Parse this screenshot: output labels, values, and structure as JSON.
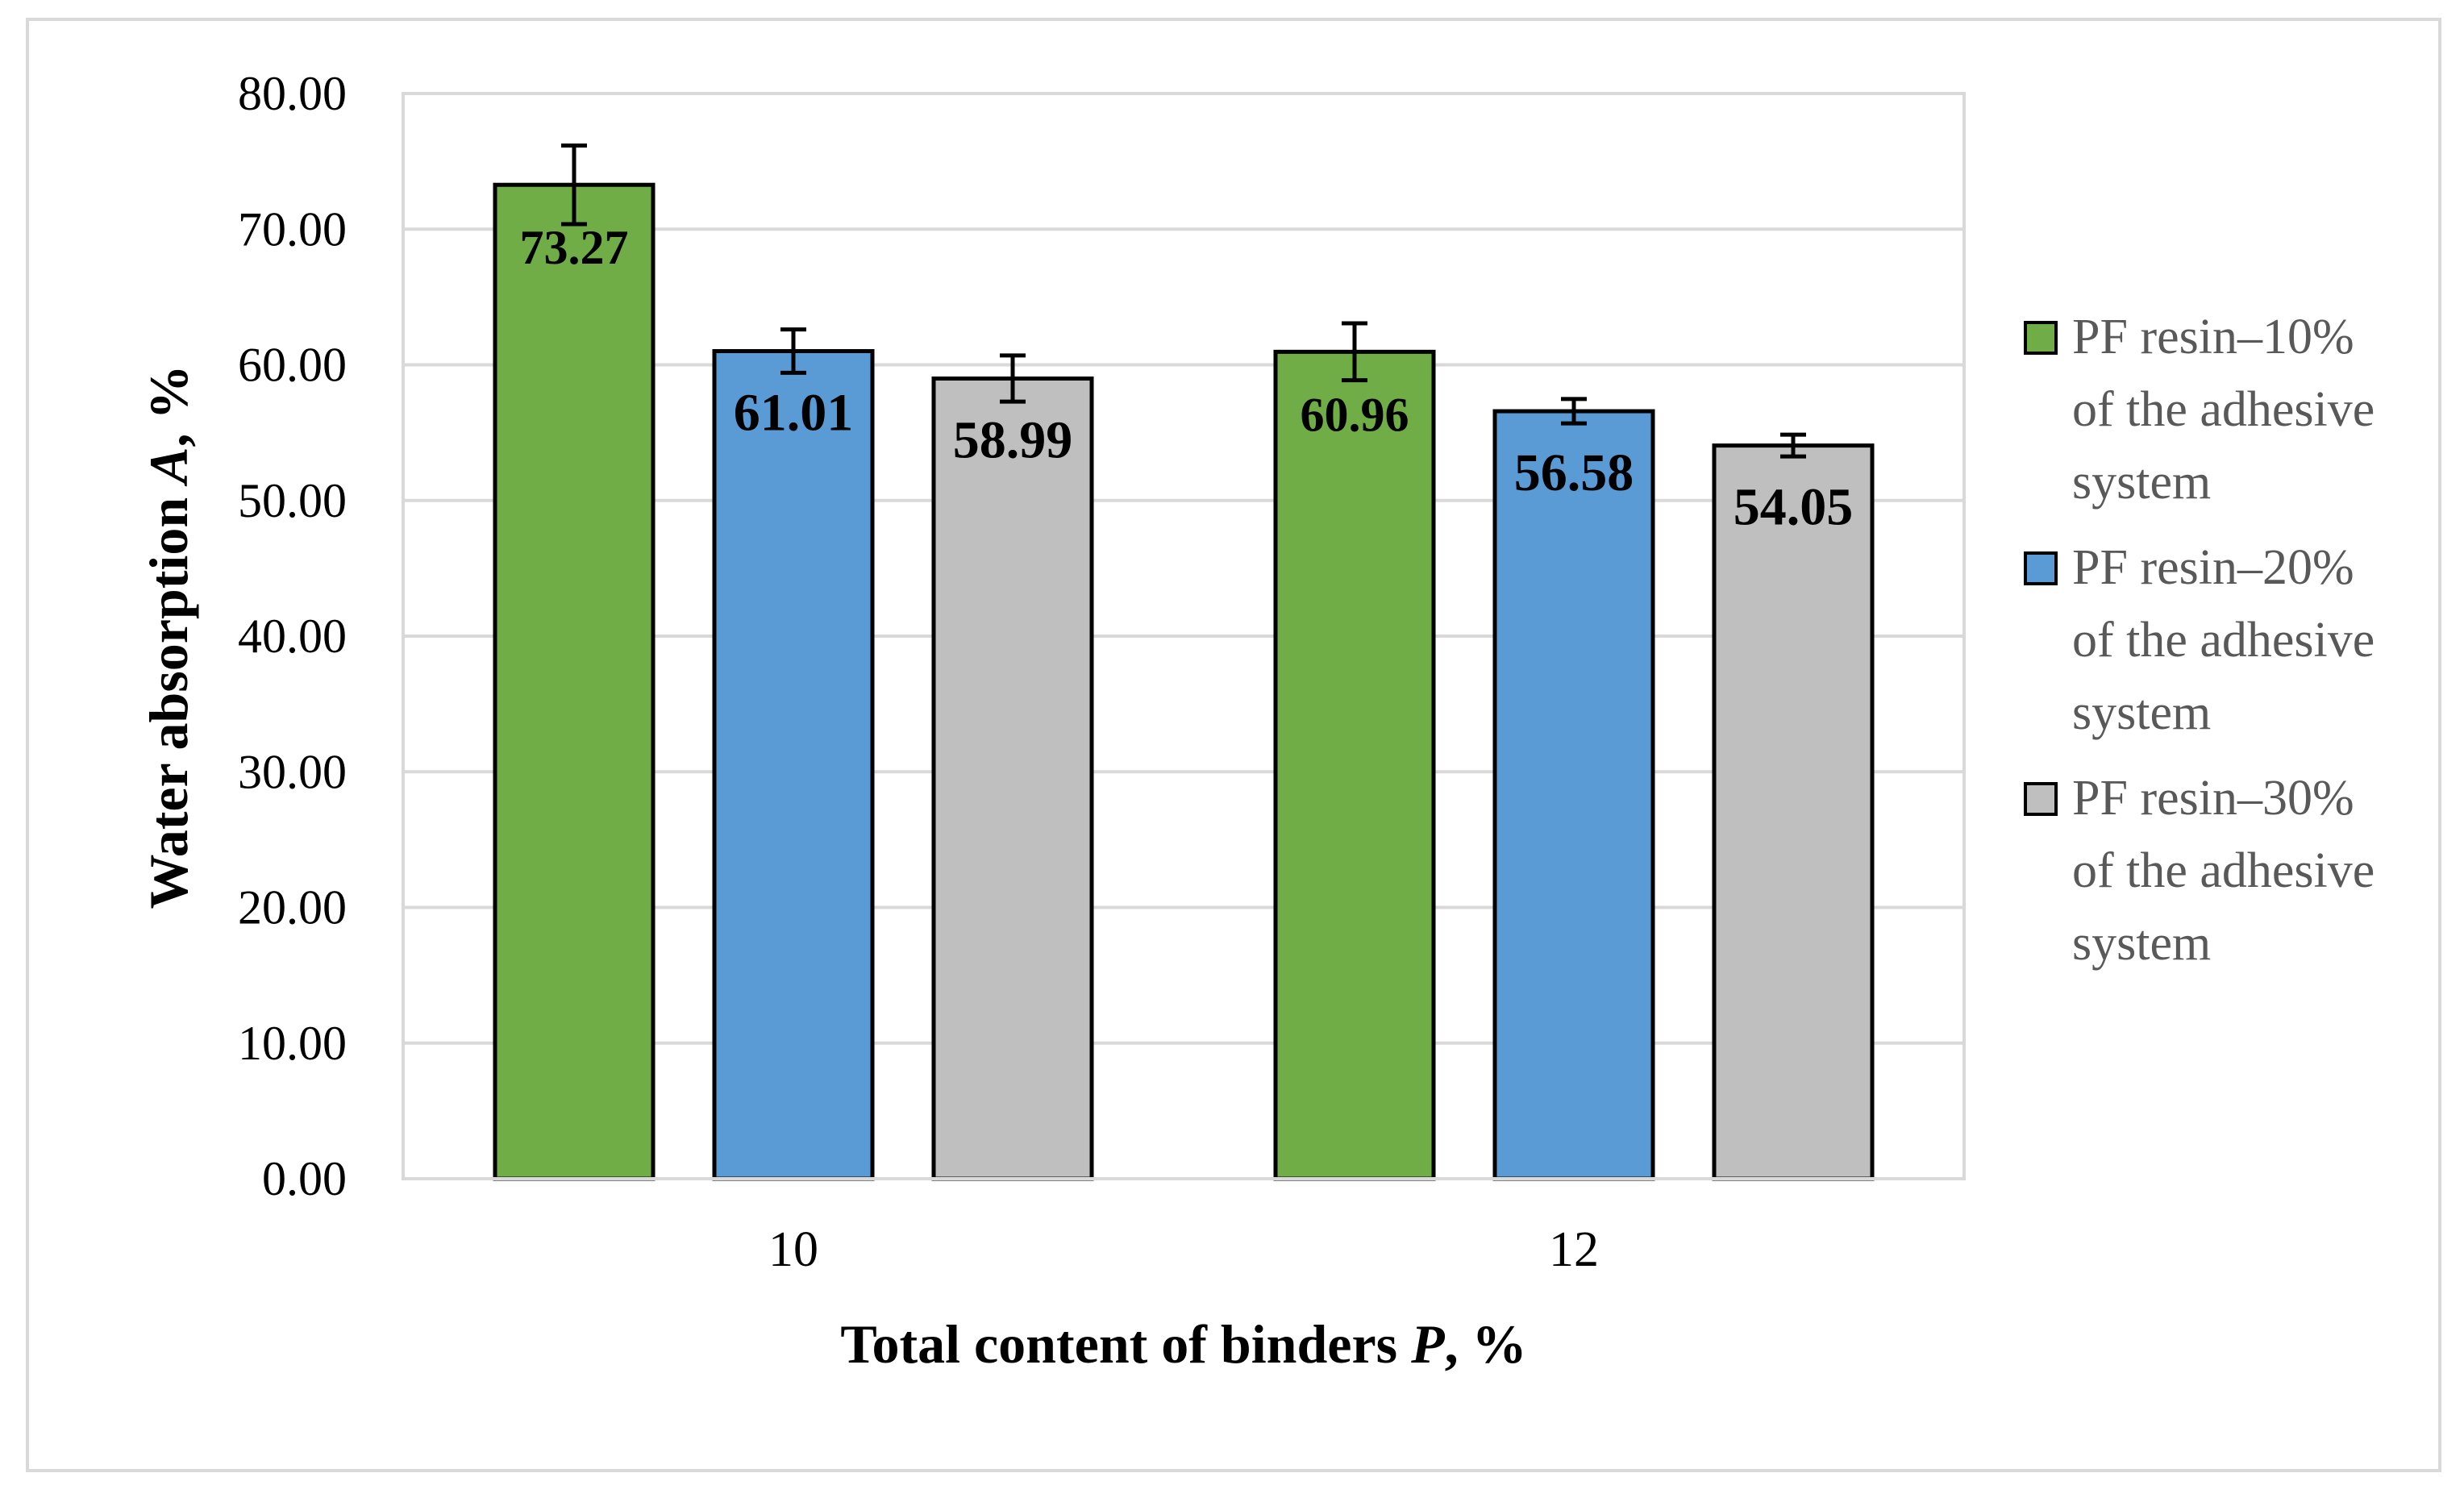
{
  "chart_data": {
    "type": "bar",
    "categories": [
      "10",
      "12"
    ],
    "series": [
      {
        "name": "PF resin–10% of the adhesive system",
        "legend_lines": [
          "PF resin–10%",
          "of the adhesive",
          "system"
        ],
        "color": "#70ad47",
        "values": [
          73.27,
          60.96
        ],
        "labels": [
          "73.27",
          "60.96"
        ],
        "errors": [
          2.9,
          2.1
        ]
      },
      {
        "name": "PF resin–20% of the adhesive system",
        "legend_lines": [
          "PF resin–20%",
          "of the adhesive",
          "system"
        ],
        "color": "#5b9bd5",
        "values": [
          61.01,
          56.58
        ],
        "labels": [
          "61.01",
          "56.58"
        ],
        "errors": [
          1.6,
          0.9
        ]
      },
      {
        "name": "PF resin–30% of the adhesive system",
        "legend_lines": [
          "PF resin–30%",
          "of the adhesive",
          "system"
        ],
        "color": "#bfbfbf",
        "values": [
          58.99,
          54.05
        ],
        "labels": [
          "58.99",
          "54.05"
        ],
        "errors": [
          1.7,
          0.8
        ]
      }
    ],
    "ylim": [
      0,
      80
    ],
    "yticks": [
      "0.00",
      "10.00",
      "20.00",
      "30.00",
      "40.00",
      "50.00",
      "60.00",
      "70.00",
      "80.00"
    ],
    "xlabel": {
      "main": "Total content of binders ",
      "italic": "P",
      "suffix": ", %"
    },
    "ylabel": {
      "main": "Water absorption  ",
      "italic": "A",
      "suffix": ", %"
    },
    "grid": true,
    "legend_position": "right",
    "error_bars": true
  }
}
